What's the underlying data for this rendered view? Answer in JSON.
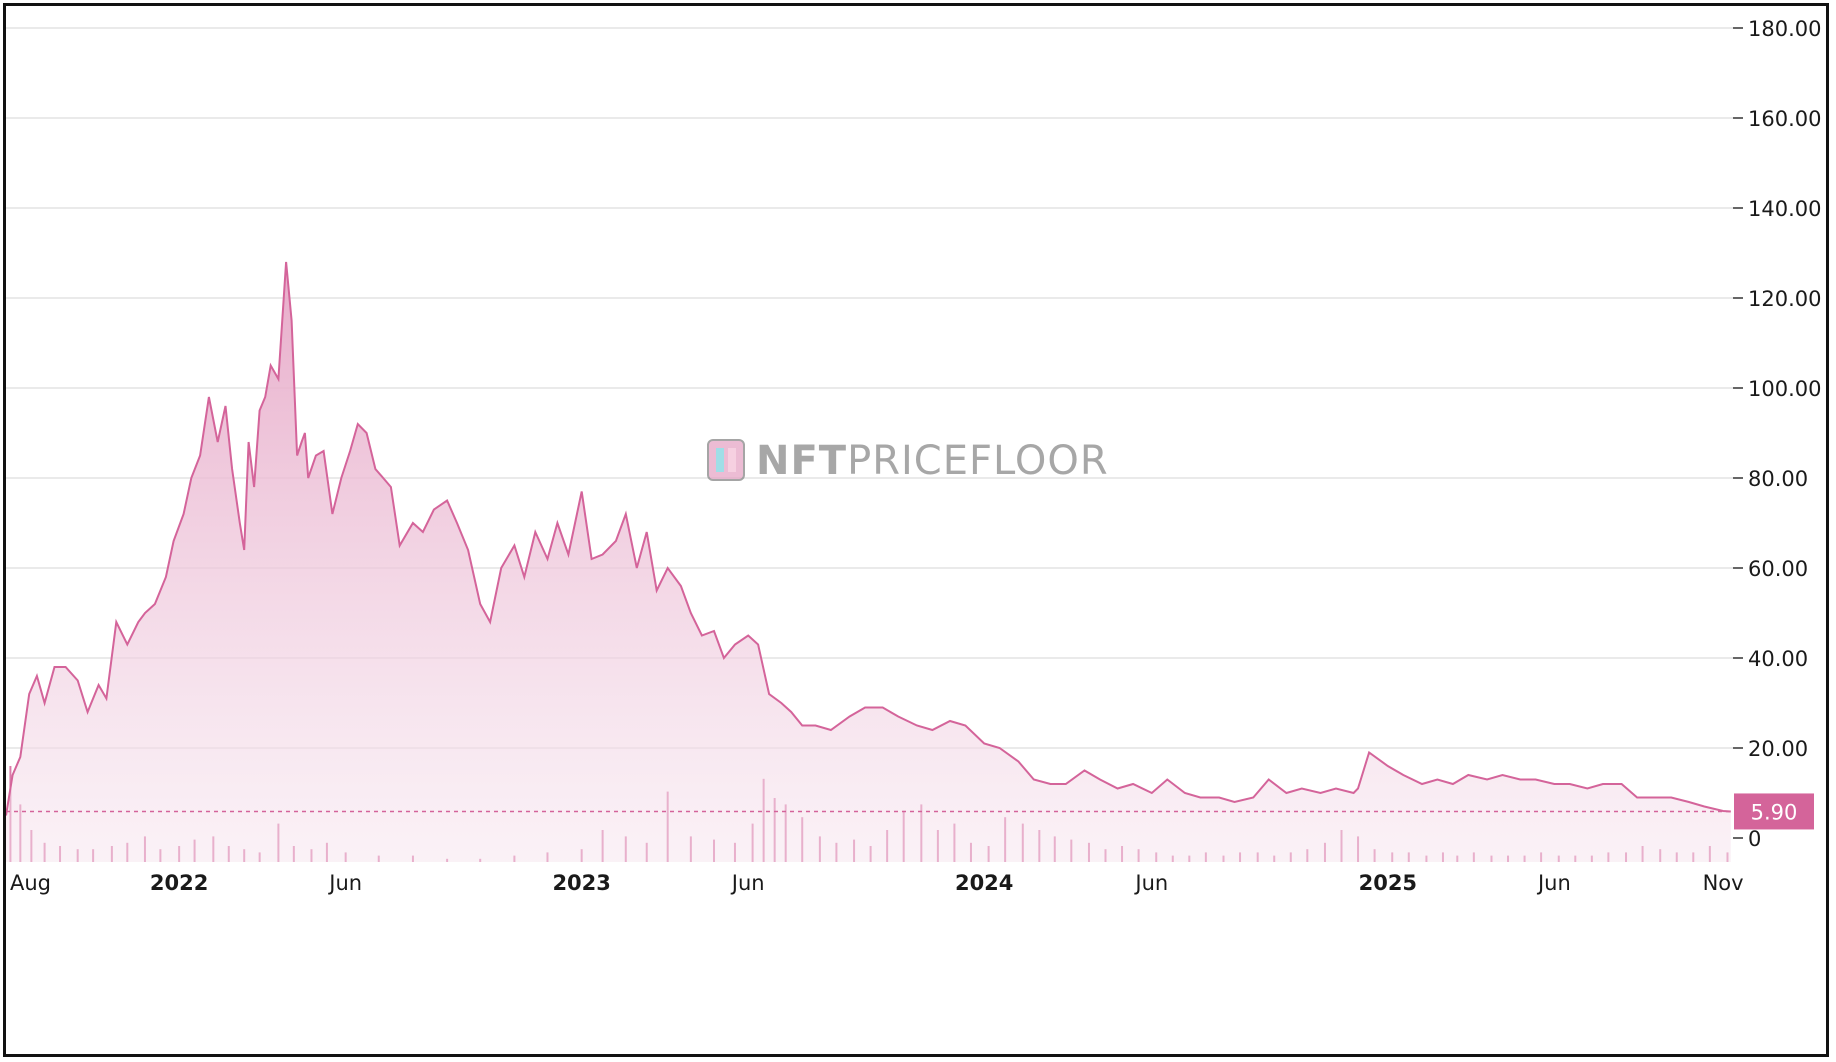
{
  "watermark": {
    "bold": "NFT",
    "light": "PRICEFLOOR"
  },
  "colors": {
    "line": "#d4649a",
    "fill_top": "#e6a6c6",
    "fill_bottom": "#f6e4ee",
    "volume": "#d4649a",
    "grid": "#e4e4e4",
    "badge": "#d4649a"
  },
  "chart_data": {
    "type": "area",
    "title": "",
    "xlabel": "",
    "ylabel": "",
    "ylim": [
      0,
      180
    ],
    "y_ticks": [
      "0",
      "20.00",
      "40.00",
      "60.00",
      "80.00",
      "100.00",
      "120.00",
      "140.00",
      "160.00",
      "180.00"
    ],
    "x_ticks": [
      {
        "label": "Aug",
        "date": "2021-08-01",
        "major": false
      },
      {
        "label": "2022",
        "date": "2022-01-01",
        "major": true
      },
      {
        "label": "Jun",
        "date": "2022-06-01",
        "major": false
      },
      {
        "label": "2023",
        "date": "2023-01-01",
        "major": true
      },
      {
        "label": "Jun",
        "date": "2023-06-01",
        "major": false
      },
      {
        "label": "2024",
        "date": "2024-01-01",
        "major": true
      },
      {
        "label": "Jun",
        "date": "2024-06-01",
        "major": false
      },
      {
        "label": "2025",
        "date": "2025-01-01",
        "major": true
      },
      {
        "label": "Jun",
        "date": "2025-06-01",
        "major": false
      },
      {
        "label": "Nov",
        "date": "2025-11-01",
        "major": false
      }
    ],
    "last_value": "5.90",
    "series": [
      {
        "type": "area",
        "x": [
          "2021-07-28",
          "2021-08-03",
          "2021-08-10",
          "2021-08-18",
          "2021-08-25",
          "2021-09-01",
          "2021-09-10",
          "2021-09-20",
          "2021-10-01",
          "2021-10-10",
          "2021-10-20",
          "2021-10-27",
          "2021-11-05",
          "2021-11-15",
          "2021-11-25",
          "2021-12-01",
          "2021-12-10",
          "2021-12-20",
          "2021-12-27",
          "2022-01-05",
          "2022-01-12",
          "2022-01-20",
          "2022-01-28",
          "2022-02-05",
          "2022-02-12",
          "2022-02-18",
          "2022-02-25",
          "2022-03-01",
          "2022-03-05",
          "2022-03-10",
          "2022-03-15",
          "2022-03-20",
          "2022-03-25",
          "2022-04-01",
          "2022-04-08",
          "2022-04-13",
          "2022-04-18",
          "2022-04-22",
          "2022-04-25",
          "2022-04-28",
          "2022-05-05",
          "2022-05-12",
          "2022-05-20",
          "2022-05-28",
          "2022-06-05",
          "2022-06-12",
          "2022-06-20",
          "2022-06-28",
          "2022-07-05",
          "2022-07-12",
          "2022-07-20",
          "2022-08-01",
          "2022-08-10",
          "2022-08-20",
          "2022-09-01",
          "2022-09-10",
          "2022-09-20",
          "2022-10-01",
          "2022-10-10",
          "2022-10-20",
          "2022-11-01",
          "2022-11-10",
          "2022-11-20",
          "2022-12-01",
          "2022-12-10",
          "2022-12-20",
          "2023-01-01",
          "2023-01-10",
          "2023-01-20",
          "2023-02-01",
          "2023-02-10",
          "2023-02-20",
          "2023-03-01",
          "2023-03-10",
          "2023-03-20",
          "2023-04-01",
          "2023-04-10",
          "2023-04-20",
          "2023-05-01",
          "2023-05-10",
          "2023-05-20",
          "2023-06-01",
          "2023-06-10",
          "2023-06-20",
          "2023-07-01",
          "2023-07-10",
          "2023-07-20",
          "2023-08-01",
          "2023-08-15",
          "2023-09-01",
          "2023-09-15",
          "2023-10-01",
          "2023-10-15",
          "2023-11-01",
          "2023-11-15",
          "2023-12-01",
          "2023-12-15",
          "2024-01-01",
          "2024-01-15",
          "2024-02-01",
          "2024-02-15",
          "2024-03-01",
          "2024-03-15",
          "2024-04-01",
          "2024-04-15",
          "2024-05-01",
          "2024-05-15",
          "2024-06-01",
          "2024-06-15",
          "2024-07-01",
          "2024-07-15",
          "2024-08-01",
          "2024-08-15",
          "2024-09-01",
          "2024-09-15",
          "2024-10-01",
          "2024-10-15",
          "2024-11-01",
          "2024-11-15",
          "2024-12-01",
          "2024-12-05",
          "2024-12-15",
          "2025-01-01",
          "2025-01-15",
          "2025-02-01",
          "2025-02-15",
          "2025-03-01",
          "2025-03-15",
          "2025-04-01",
          "2025-04-15",
          "2025-05-01",
          "2025-05-15",
          "2025-06-01",
          "2025-06-15",
          "2025-07-01",
          "2025-07-15",
          "2025-08-01",
          "2025-08-15",
          "2025-09-01",
          "2025-09-15",
          "2025-10-01",
          "2025-10-15",
          "2025-11-01",
          "2025-11-08"
        ],
        "y": [
          5,
          14,
          18,
          32,
          36,
          30,
          38,
          38,
          35,
          28,
          34,
          31,
          48,
          43,
          48,
          50,
          52,
          58,
          66,
          72,
          80,
          85,
          98,
          88,
          96,
          82,
          70,
          64,
          88,
          78,
          95,
          98,
          105,
          102,
          128,
          115,
          85,
          88,
          90,
          80,
          85,
          86,
          72,
          80,
          86,
          92,
          90,
          82,
          80,
          78,
          65,
          70,
          68,
          73,
          75,
          70,
          64,
          52,
          48,
          60,
          65,
          58,
          68,
          62,
          70,
          63,
          77,
          62,
          63,
          66,
          72,
          60,
          68,
          55,
          60,
          56,
          50,
          45,
          46,
          40,
          43,
          45,
          43,
          32,
          30,
          28,
          25,
          25,
          24,
          27,
          29,
          29,
          27,
          25,
          24,
          26,
          25,
          21,
          20,
          17,
          13,
          12,
          12,
          15,
          13,
          11,
          12,
          10,
          13,
          10,
          9,
          9,
          8,
          9,
          13,
          10,
          11,
          10,
          11,
          10,
          11,
          19,
          16,
          14,
          12,
          13,
          12,
          14,
          13,
          14,
          13,
          13,
          12,
          12,
          11,
          12,
          12,
          9,
          9,
          9,
          8,
          7,
          6,
          5.9
        ]
      },
      {
        "type": "bar",
        "name": "",
        "note": "volume",
        "x": [
          "2021-08-01",
          "2021-08-10",
          "2021-08-20",
          "2021-09-01",
          "2021-09-15",
          "2021-10-01",
          "2021-10-15",
          "2021-11-01",
          "2021-11-15",
          "2021-12-01",
          "2021-12-15",
          "2022-01-01",
          "2022-01-15",
          "2022-02-01",
          "2022-02-15",
          "2022-03-01",
          "2022-03-15",
          "2022-04-01",
          "2022-04-15",
          "2022-05-01",
          "2022-05-15",
          "2022-06-01",
          "2022-07-01",
          "2022-08-01",
          "2022-09-01",
          "2022-10-01",
          "2022-11-01",
          "2022-12-01",
          "2023-01-01",
          "2023-01-20",
          "2023-02-10",
          "2023-03-01",
          "2023-03-20",
          "2023-04-10",
          "2023-05-01",
          "2023-05-20",
          "2023-06-05",
          "2023-06-15",
          "2023-06-25",
          "2023-07-05",
          "2023-07-20",
          "2023-08-05",
          "2023-08-20",
          "2023-09-05",
          "2023-09-20",
          "2023-10-05",
          "2023-10-20",
          "2023-11-05",
          "2023-11-20",
          "2023-12-05",
          "2023-12-20",
          "2024-01-05",
          "2024-01-20",
          "2024-02-05",
          "2024-02-20",
          "2024-03-05",
          "2024-03-20",
          "2024-04-05",
          "2024-04-20",
          "2024-05-05",
          "2024-05-20",
          "2024-06-05",
          "2024-06-20",
          "2024-07-05",
          "2024-07-20",
          "2024-08-05",
          "2024-08-20",
          "2024-09-05",
          "2024-09-20",
          "2024-10-05",
          "2024-10-20",
          "2024-11-05",
          "2024-11-20",
          "2024-12-05",
          "2024-12-20",
          "2025-01-05",
          "2025-01-20",
          "2025-02-05",
          "2025-02-20",
          "2025-03-05",
          "2025-03-20",
          "2025-04-05",
          "2025-04-20",
          "2025-05-05",
          "2025-05-20",
          "2025-06-05",
          "2025-06-20",
          "2025-07-05",
          "2025-07-20",
          "2025-08-05",
          "2025-08-20",
          "2025-09-05",
          "2025-09-20",
          "2025-10-05",
          "2025-10-20",
          "2025-11-05"
        ],
        "values": [
          30,
          18,
          10,
          6,
          5,
          4,
          4,
          5,
          6,
          8,
          4,
          5,
          7,
          8,
          5,
          4,
          3,
          12,
          5,
          4,
          6,
          3,
          2,
          2,
          1,
          1,
          2,
          3,
          4,
          10,
          8,
          6,
          22,
          8,
          7,
          6,
          12,
          26,
          20,
          18,
          14,
          8,
          6,
          7,
          5,
          10,
          16,
          18,
          10,
          12,
          6,
          5,
          14,
          12,
          10,
          8,
          7,
          6,
          4,
          5,
          4,
          3,
          2,
          2,
          3,
          2,
          3,
          3,
          2,
          3,
          4,
          6,
          10,
          8,
          4,
          3,
          3,
          2,
          3,
          2,
          3,
          2,
          2,
          2,
          3,
          2,
          2,
          2,
          3,
          3,
          5,
          4,
          3,
          3,
          5,
          3
        ]
      }
    ]
  }
}
